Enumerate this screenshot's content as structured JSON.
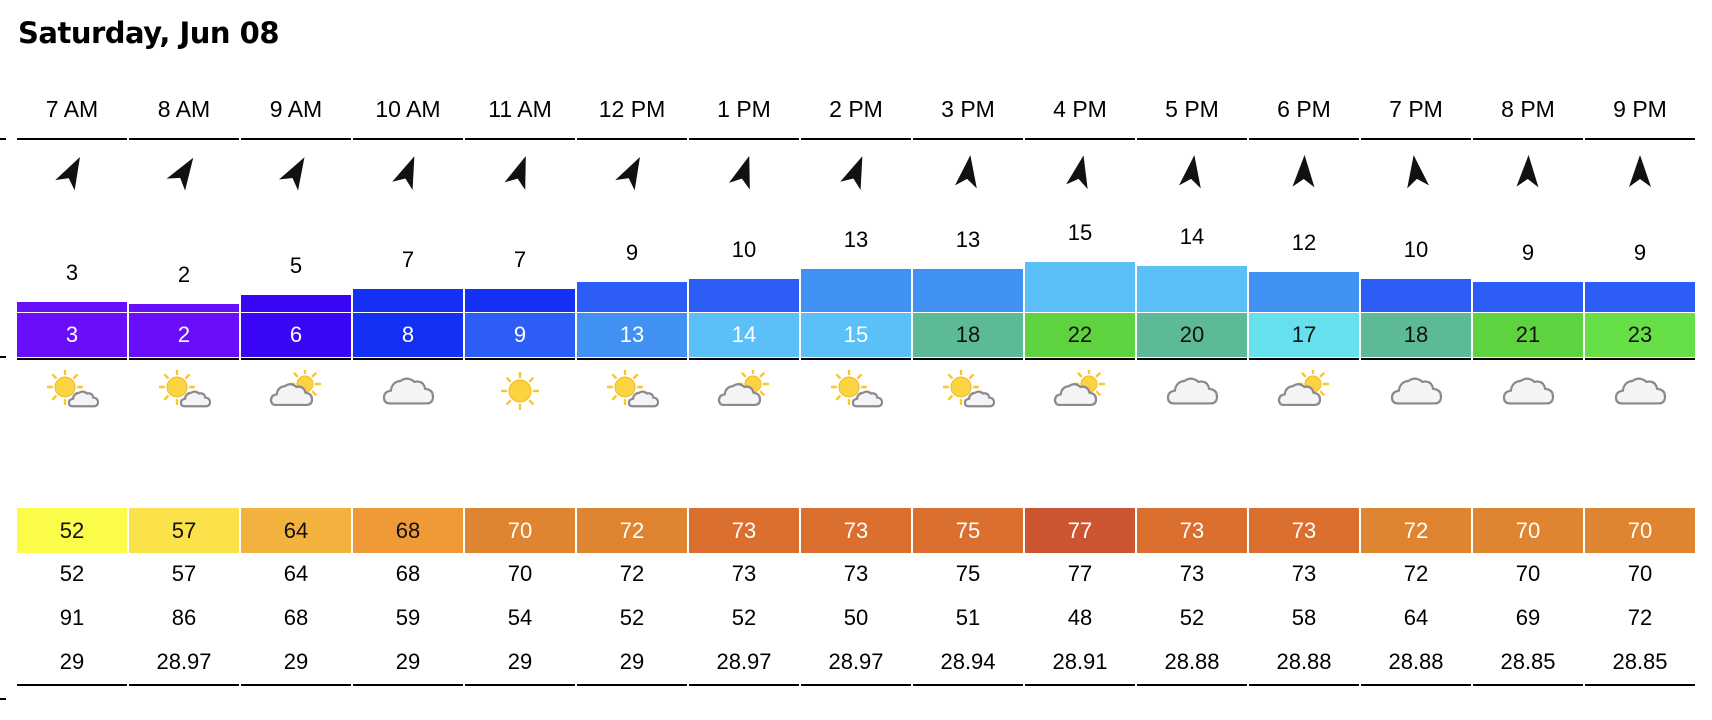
{
  "title": "Saturday, Jun 08",
  "hours": [
    {
      "time": "7 AM",
      "wind_dir_deg": 28,
      "wind": "3",
      "gust": "3",
      "gust_color": "#6a0dfa",
      "condition": "partly-sunny-icon",
      "temp": "52",
      "temp_color": "#fcfc4a",
      "feels": "52",
      "humidity": "91",
      "pressure": "29"
    },
    {
      "time": "8 AM",
      "wind_dir_deg": 33,
      "wind": "2",
      "gust": "2",
      "gust_color": "#6a0dfa",
      "condition": "partly-sunny-icon",
      "temp": "57",
      "temp_color": "#fbe24a",
      "feels": "57",
      "humidity": "86",
      "pressure": "28.97"
    },
    {
      "time": "9 AM",
      "wind_dir_deg": 30,
      "wind": "5",
      "gust": "6",
      "gust_color": "#3a06f5",
      "condition": "partly-cloudy-icon",
      "temp": "64",
      "temp_color": "#f3b13d",
      "feels": "64",
      "humidity": "68",
      "pressure": "29"
    },
    {
      "time": "10 AM",
      "wind_dir_deg": 22,
      "wind": "7",
      "gust": "8",
      "gust_color": "#1530f5",
      "condition": "cloudy-icon",
      "temp": "68",
      "temp_color": "#f09a37",
      "feels": "68",
      "humidity": "59",
      "pressure": "29"
    },
    {
      "time": "11 AM",
      "wind_dir_deg": 20,
      "wind": "7",
      "gust": "9",
      "gust_color": "#2c5df5",
      "condition": "sunny-icon",
      "temp": "70",
      "temp_color": "#df8431",
      "feels": "70",
      "humidity": "54",
      "pressure": "29"
    },
    {
      "time": "12 PM",
      "wind_dir_deg": 28,
      "wind": "9",
      "gust": "13",
      "gust_color": "#4191f3",
      "condition": "partly-sunny-icon",
      "temp": "72",
      "temp_color": "#df8431",
      "feels": "72",
      "humidity": "52",
      "pressure": "29"
    },
    {
      "time": "1 PM",
      "wind_dir_deg": 18,
      "wind": "10",
      "gust": "14",
      "gust_color": "#5cc0f8",
      "condition": "partly-cloudy-icon",
      "temp": "73",
      "temp_color": "#da6f2f",
      "feels": "73",
      "humidity": "52",
      "pressure": "28.97"
    },
    {
      "time": "2 PM",
      "wind_dir_deg": 22,
      "wind": "13",
      "gust": "15",
      "gust_color": "#5cc0f8",
      "condition": "partly-sunny-icon",
      "temp": "73",
      "temp_color": "#da6f2f",
      "feels": "73",
      "humidity": "50",
      "pressure": "28.97"
    },
    {
      "time": "3 PM",
      "wind_dir_deg": 8,
      "wind": "13",
      "gust": "18",
      "gust_color": "#5cba96",
      "condition": "partly-sunny-icon",
      "temp": "75",
      "temp_color": "#da6f2f",
      "feels": "75",
      "humidity": "51",
      "pressure": "28.94"
    },
    {
      "time": "4 PM",
      "wind_dir_deg": 12,
      "wind": "15",
      "gust": "22",
      "gust_color": "#5fd240",
      "condition": "partly-cloudy-icon",
      "temp": "77",
      "temp_color": "#cc5531",
      "feels": "77",
      "humidity": "48",
      "pressure": "28.91"
    },
    {
      "time": "5 PM",
      "wind_dir_deg": 8,
      "wind": "14",
      "gust": "20",
      "gust_color": "#5cba96",
      "condition": "cloudy-icon",
      "temp": "73",
      "temp_color": "#da6f2f",
      "feels": "73",
      "humidity": "52",
      "pressure": "28.88"
    },
    {
      "time": "6 PM",
      "wind_dir_deg": 2,
      "wind": "12",
      "gust": "17",
      "gust_color": "#66e0ec",
      "condition": "partly-cloudy-icon",
      "temp": "73",
      "temp_color": "#da6f2f",
      "feels": "73",
      "humidity": "58",
      "pressure": "28.88"
    },
    {
      "time": "7 PM",
      "wind_dir_deg": -8,
      "wind": "10",
      "gust": "18",
      "gust_color": "#5cba96",
      "condition": "cloudy-icon",
      "temp": "72",
      "temp_color": "#df8431",
      "feels": "72",
      "humidity": "64",
      "pressure": "28.88"
    },
    {
      "time": "8 PM",
      "wind_dir_deg": 2,
      "wind": "9",
      "gust": "21",
      "gust_color": "#5fd240",
      "condition": "cloudy-icon",
      "temp": "70",
      "temp_color": "#df8431",
      "feels": "70",
      "humidity": "69",
      "pressure": "28.85"
    },
    {
      "time": "9 PM",
      "wind_dir_deg": 0,
      "wind": "9",
      "gust": "23",
      "gust_color": "#66e046",
      "condition": "cloudy-icon",
      "temp": "70",
      "temp_color": "#df8431",
      "feels": "70",
      "humidity": "72",
      "pressure": "28.85"
    }
  ]
}
